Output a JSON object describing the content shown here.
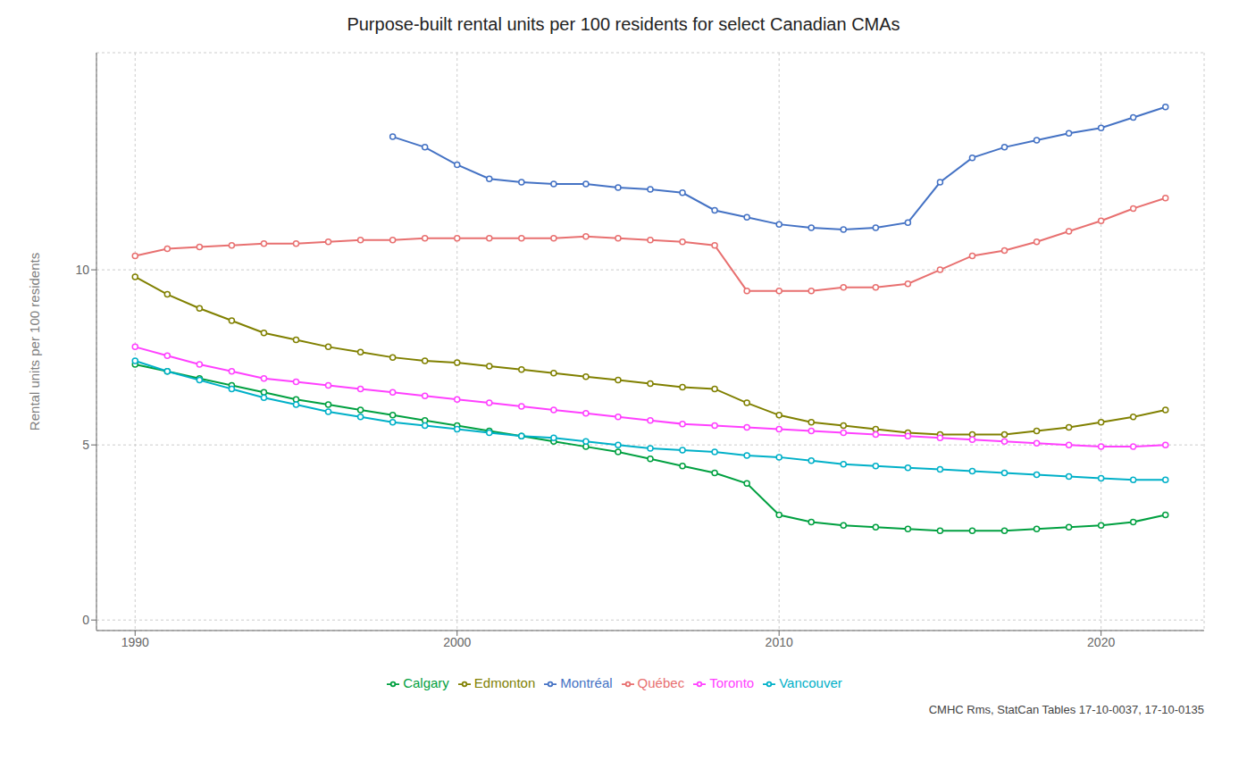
{
  "chart_data": {
    "type": "line",
    "title": "Purpose-built rental units per 100 residents for select Canadian CMAs",
    "y_label": "Rental units per 100 residents",
    "annotations": [
      "CMHC Rms, StatCan Tables 17-10-0037, 17-10-0135"
    ],
    "x": [
      1990,
      1991,
      1992,
      1993,
      1994,
      1995,
      1996,
      1997,
      1998,
      1999,
      2000,
      2001,
      2002,
      2003,
      2004,
      2005,
      2006,
      2007,
      2008,
      2009,
      2010,
      2011,
      2012,
      2013,
      2014,
      2015,
      2016,
      2017,
      2018,
      2019,
      2020,
      2021,
      2022
    ],
    "series": [
      {
        "name": "Québec",
        "color": "#e87070",
        "values": [
          10.4,
          10.6,
          10.65,
          10.7,
          10.75,
          10.75,
          10.8,
          10.85,
          10.85,
          10.9,
          10.9,
          10.9,
          10.9,
          10.9,
          10.95,
          10.9,
          10.85,
          10.8,
          10.7,
          9.4,
          9.4,
          9.4,
          9.5,
          9.5,
          9.6,
          10.0,
          10.4,
          10.55,
          10.8,
          11.1,
          11.4,
          11.75,
          12.05
        ]
      },
      {
        "name": "Calgary",
        "color": "#00a040",
        "values": [
          7.3,
          7.1,
          6.9,
          6.7,
          6.5,
          6.3,
          6.15,
          6.0,
          5.85,
          5.7,
          5.55,
          5.4,
          5.25,
          5.1,
          4.95,
          4.8,
          4.6,
          4.4,
          4.2,
          3.9,
          3.0,
          2.8,
          2.7,
          2.65,
          2.6,
          2.55,
          2.55,
          2.55,
          2.6,
          2.65,
          2.7,
          2.8,
          3.0
        ]
      },
      {
        "name": "Montréal",
        "color": "#4472c4",
        "values": [
          null,
          null,
          null,
          null,
          null,
          null,
          null,
          null,
          13.8,
          13.5,
          13.0,
          12.6,
          12.5,
          12.45,
          12.45,
          12.35,
          12.3,
          12.2,
          11.7,
          11.5,
          11.3,
          11.2,
          11.15,
          11.2,
          11.35,
          12.5,
          13.2,
          13.5,
          13.7,
          13.9,
          14.05,
          14.35,
          14.65
        ]
      },
      {
        "name": "Edmonton",
        "color": "#808000",
        "values": [
          9.8,
          9.3,
          8.9,
          8.55,
          8.2,
          8.0,
          7.8,
          7.65,
          7.5,
          7.4,
          7.35,
          7.25,
          7.15,
          7.05,
          6.95,
          6.85,
          6.75,
          6.65,
          6.6,
          6.2,
          5.85,
          5.65,
          5.55,
          5.45,
          5.35,
          5.3,
          5.3,
          5.3,
          5.4,
          5.5,
          5.65,
          5.8,
          6.0
        ]
      },
      {
        "name": "Vancouver",
        "color": "#00b0c8",
        "values": [
          7.4,
          7.1,
          6.85,
          6.6,
          6.35,
          6.15,
          5.95,
          5.8,
          5.65,
          5.55,
          5.45,
          5.35,
          5.25,
          5.2,
          5.1,
          5.0,
          4.9,
          4.85,
          4.8,
          4.7,
          4.65,
          4.55,
          4.45,
          4.4,
          4.35,
          4.3,
          4.25,
          4.2,
          4.15,
          4.1,
          4.05,
          4.0,
          4.0
        ]
      },
      {
        "name": "Toronto",
        "color": "#ff40ff",
        "values": [
          7.8,
          7.55,
          7.3,
          7.1,
          6.9,
          6.8,
          6.7,
          6.6,
          6.5,
          6.4,
          6.3,
          6.2,
          6.1,
          6.0,
          5.9,
          5.8,
          5.7,
          5.6,
          5.55,
          5.5,
          5.45,
          5.4,
          5.35,
          5.3,
          5.25,
          5.2,
          5.15,
          5.1,
          5.05,
          5.0,
          4.95,
          4.95,
          5.0
        ]
      }
    ],
    "xlim": [
      1988.8,
      2023.2
    ],
    "xticks": [
      1990,
      2000,
      2010,
      2020
    ],
    "ylim": [
      -0.3,
      16.2
    ],
    "yticks": [
      0,
      5,
      10
    ],
    "grid": true,
    "legend": "bottom",
    "marker": "circle"
  }
}
